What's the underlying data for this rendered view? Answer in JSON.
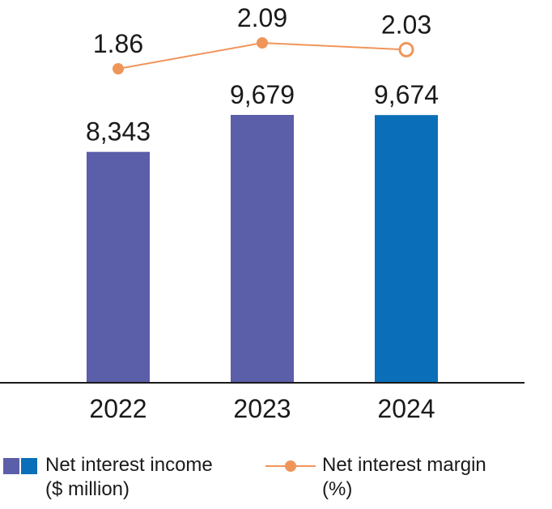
{
  "chart_data": {
    "type": "bar",
    "categories": [
      "2022",
      "2023",
      "2024"
    ],
    "series": [
      {
        "name": "Net interest income ($ million)",
        "type": "bar",
        "values": [
          8343,
          9679,
          9674
        ],
        "labels": [
          "8,343",
          "9,679",
          "9,674"
        ],
        "colors": [
          "#5b5ea8",
          "#5b5ea8",
          "#0a6fb8"
        ]
      },
      {
        "name": "Net interest margin (%)",
        "type": "line",
        "values": [
          1.86,
          2.09,
          2.03
        ],
        "labels": [
          "1.86",
          "2.09",
          "2.03"
        ],
        "color": "#f0955a",
        "hollow_last_marker": true
      }
    ],
    "ylim": [
      0,
      9679
    ]
  },
  "legend": {
    "income_line1": "Net interest income",
    "income_line2": "($ million)",
    "margin_line1": "Net interest margin",
    "margin_line2": "(%)",
    "swatch_colors": [
      "#5b5ea8",
      "#0a6fb8"
    ],
    "margin_color": "#f0955a"
  }
}
